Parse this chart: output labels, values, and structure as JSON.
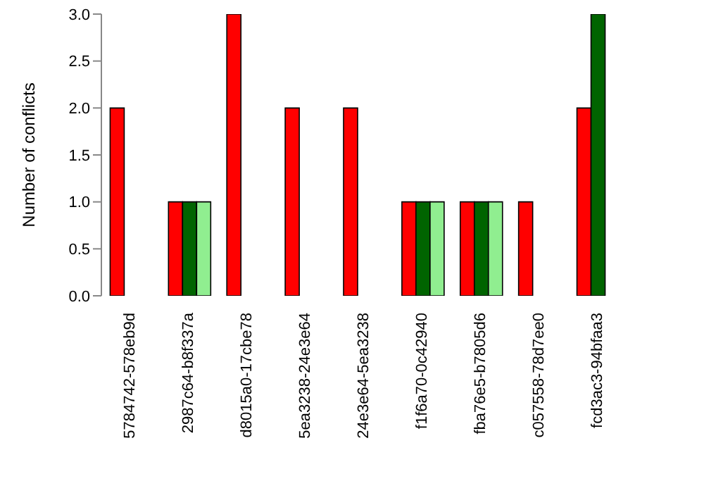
{
  "chart_data": {
    "type": "bar",
    "ylabel": "Number of conflicts",
    "categories": [
      "5784742-578eb9d",
      "2987c64-b8f337a",
      "d8015a0-17cbe78",
      "5ea3238-24e3e64",
      "24e3e64-5ea3238",
      "f1f6a70-0c42940",
      "fba76e5-b7805d6",
      "c057558-78d7ee0",
      "fcd3ac3-94bfaa3"
    ],
    "series": [
      {
        "color": "#ff0000",
        "values": [
          2,
          1,
          3,
          2,
          2,
          1,
          1,
          1,
          2
        ]
      },
      {
        "color": "#006400",
        "values": [
          0,
          1,
          0,
          0,
          0,
          1,
          1,
          0,
          3
        ]
      },
      {
        "color": "#90ee90",
        "values": [
          0,
          1,
          0,
          0,
          0,
          1,
          1,
          0,
          0
        ]
      }
    ],
    "ylim": [
      0,
      3
    ],
    "yticks": [
      {
        "value": 0,
        "label": "0.0"
      },
      {
        "value": 0.5,
        "label": "0.5"
      },
      {
        "value": 1,
        "label": "1.0"
      },
      {
        "value": 1.5,
        "label": "1.5"
      },
      {
        "value": 2,
        "label": "2.0"
      },
      {
        "value": 2.5,
        "label": "2.5"
      },
      {
        "value": 3,
        "label": "3.0"
      }
    ],
    "grid": false,
    "legend": false
  }
}
